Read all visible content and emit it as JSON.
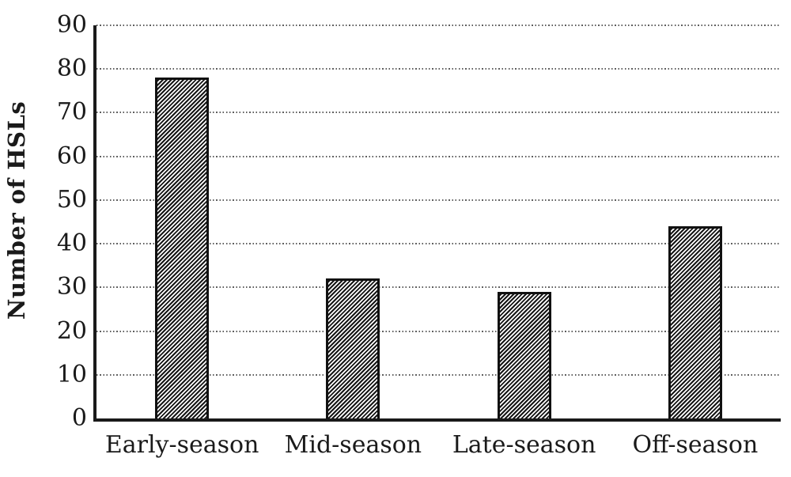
{
  "chart_data": {
    "type": "bar",
    "categories": [
      "Early-season",
      "Mid-season",
      "Late-season",
      "Off-season"
    ],
    "values": [
      78,
      32,
      29,
      44
    ],
    "title": "",
    "xlabel": "",
    "ylabel": "Number of HSLs",
    "ylim": [
      0,
      90
    ],
    "yticks": [
      0,
      10,
      20,
      30,
      40,
      50,
      60,
      70,
      80,
      90
    ],
    "grid": "horizontal-dotted",
    "legend": "none",
    "bar_style": {
      "fill": "hatch-diagonal-forward-slash",
      "hatch_color": "#161616",
      "bar_background": "#ffffff",
      "border_color": "#111111"
    }
  },
  "colors": {
    "background": "#ffffff",
    "axis": "#1a1a1a",
    "gridline": "#5e5e5e",
    "text": "#1a1a1a"
  }
}
